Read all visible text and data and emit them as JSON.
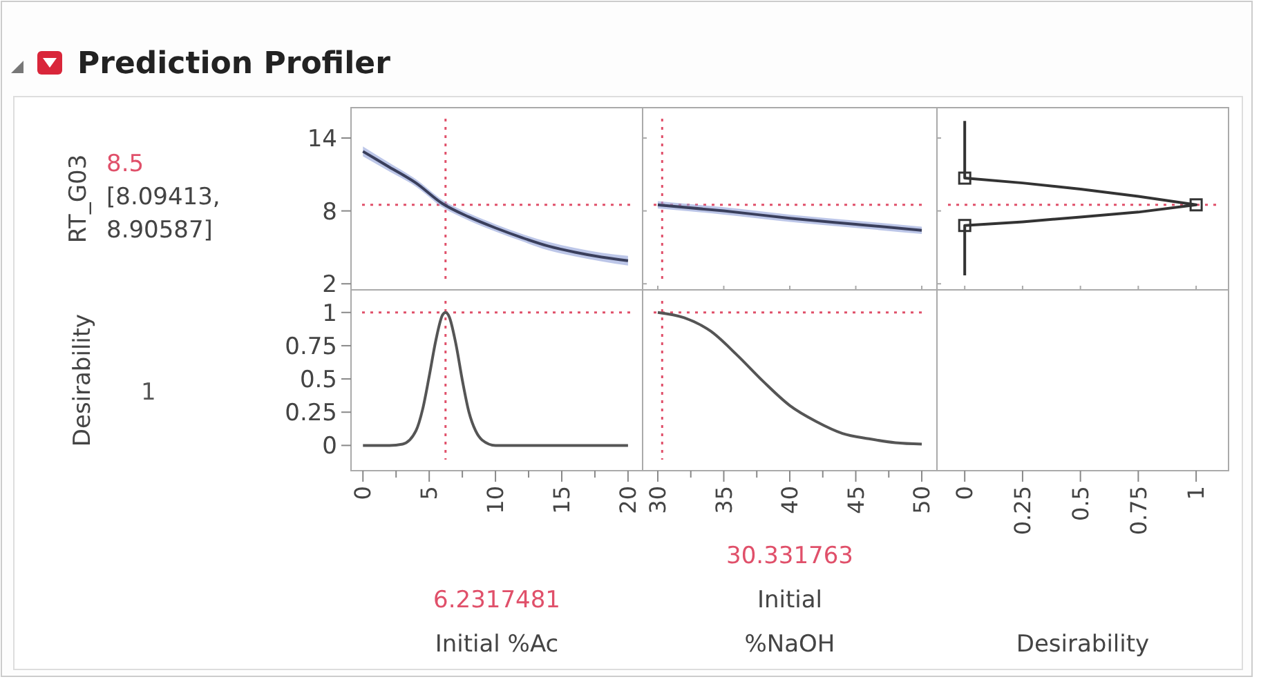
{
  "chart_data": [
    {
      "type": "line",
      "title": "Prediction Profiler",
      "ylabel": "RT_G03",
      "annotations": [
        "8.5",
        "[8.09413, 8.90587]"
      ],
      "x": [
        0,
        2,
        4,
        6,
        8,
        10,
        12,
        14,
        16,
        18,
        20
      ],
      "series": [
        {
          "color": "#3a3f5c",
          "values": [
            12.9,
            11.6,
            10.3,
            8.6,
            7.5,
            6.6,
            5.8,
            5.1,
            4.6,
            4.2,
            3.9
          ],
          "lower": [
            12.5,
            11.25,
            10.0,
            8.3,
            7.2,
            6.3,
            5.5,
            4.75,
            4.25,
            3.85,
            3.5
          ],
          "upper": [
            13.3,
            11.95,
            10.6,
            8.9,
            7.8,
            6.9,
            6.1,
            5.45,
            4.95,
            4.55,
            4.3
          ]
        }
      ],
      "xlim": [
        -0.9,
        21.1
      ],
      "ylim": [
        1.5,
        16.5
      ],
      "yticks": [
        2,
        8,
        14
      ],
      "tick_labels": "y",
      "ref_lines": [
        {
          "axis": "x",
          "value": 6.2317481,
          "color": "#e0506a",
          "line_style": "dotted"
        },
        {
          "axis": "y",
          "value": 8.5,
          "color": "#e0506a",
          "line_style": "dotted"
        }
      ]
    },
    {
      "type": "line",
      "x": [
        30,
        35,
        40,
        45,
        50
      ],
      "series": [
        {
          "color": "#3a3f5c",
          "values": [
            8.5,
            8.0,
            7.4,
            6.9,
            6.4
          ],
          "lower": [
            8.2,
            7.7,
            7.1,
            6.6,
            6.1
          ],
          "upper": [
            8.8,
            8.3,
            7.7,
            7.2,
            6.7
          ]
        }
      ],
      "xlim": [
        28.85,
        51.15
      ],
      "ylim": [
        1.5,
        16.5
      ],
      "yticks": [
        2,
        8,
        14
      ],
      "xticks": [
        30,
        35,
        40,
        45,
        50
      ],
      "tick_labels": false,
      "ref_lines": [
        {
          "axis": "x",
          "value": 30.331763,
          "color": "#e0506a",
          "line_style": "dotted"
        },
        {
          "axis": "y",
          "value": 8.5,
          "color": "#e0506a",
          "line_style": "dotted"
        }
      ]
    },
    {
      "type": "line",
      "series": [
        {
          "color": "#333333",
          "x": [
            0,
            0,
            0.25,
            0.5,
            0.75,
            1,
            0.75,
            0.5,
            0.25,
            0,
            0
          ],
          "values": [
            15.4,
            10.7,
            10.3,
            9.8,
            9.2,
            8.5,
            7.9,
            7.5,
            7.1,
            6.8,
            2.7
          ]
        },
        {
          "type": "scatter",
          "color": "#333333",
          "marker": "square",
          "x": [
            0,
            1,
            0
          ],
          "values": [
            10.7,
            8.5,
            6.8
          ]
        }
      ],
      "xlim": [
        -0.12,
        1.14
      ],
      "ylim": [
        1.5,
        16.5
      ],
      "yticks": [
        2,
        8,
        14
      ],
      "xticks": [
        0,
        0.25,
        0.5,
        0.75,
        1
      ],
      "tick_labels": false,
      "ref_lines": [
        {
          "axis": "y",
          "value": 8.5,
          "color": "#e0506a",
          "line_style": "dotted"
        }
      ]
    },
    {
      "type": "line",
      "ylabel": "Desirability",
      "xlabel": "Initial %Ac",
      "annotations": [
        "1",
        "6.2317481"
      ],
      "x": [
        0,
        2,
        3,
        4,
        4.5,
        5,
        5.5,
        6,
        6.23,
        6.5,
        7,
        7.5,
        8,
        8.5,
        9,
        10,
        12,
        15,
        20
      ],
      "series": [
        {
          "color": "#555555",
          "values": [
            0,
            0,
            0.01,
            0.11,
            0.27,
            0.52,
            0.79,
            0.98,
            1,
            0.97,
            0.77,
            0.49,
            0.25,
            0.11,
            0.04,
            0,
            0,
            0,
            0
          ]
        }
      ],
      "xlim": [
        -0.9,
        21.1
      ],
      "ylim": [
        -0.19,
        1.17
      ],
      "yticks": [
        0,
        0.25,
        0.5,
        0.75,
        1
      ],
      "xticks": [
        0,
        {
          "value": 2.5,
          "label": null
        },
        5,
        {
          "value": 7.5,
          "label": null
        },
        10,
        {
          "value": 12.5,
          "label": null
        },
        15,
        {
          "value": 17.5,
          "label": null
        },
        20
      ],
      "ref_lines": [
        {
          "axis": "x",
          "value": 6.2317481,
          "color": "#e0506a",
          "line_style": "dotted"
        },
        {
          "axis": "y",
          "value": 1,
          "color": "#e0506a",
          "line_style": "dotted"
        }
      ]
    },
    {
      "type": "line",
      "xlabel": "Initial %NaOH",
      "annotations": [
        "30.331763"
      ],
      "x": [
        30,
        32,
        34,
        36,
        38,
        40,
        42,
        44,
        46,
        48,
        50
      ],
      "series": [
        {
          "color": "#555555",
          "values": [
            1,
            0.96,
            0.86,
            0.68,
            0.48,
            0.3,
            0.18,
            0.09,
            0.05,
            0.02,
            0.01
          ]
        }
      ],
      "xlim": [
        28.85,
        51.15
      ],
      "ylim": [
        -0.19,
        1.17
      ],
      "xticks": [
        30,
        {
          "value": 32.5,
          "label": null
        },
        35,
        {
          "value": 37.5,
          "label": null
        },
        40,
        {
          "value": 42.5,
          "label": null
        },
        45,
        {
          "value": 47.5,
          "label": null
        },
        50
      ],
      "tick_labels": "x",
      "ref_lines": [
        {
          "axis": "x",
          "value": 30.331763,
          "color": "#e0506a",
          "line_style": "dotted"
        },
        {
          "axis": "y",
          "value": 1,
          "color": "#e0506a",
          "line_style": "dotted"
        }
      ]
    },
    {
      "type": "line",
      "xlabel": "Desirability",
      "xlim": [
        -0.12,
        1.14
      ],
      "ylim": [
        -0.19,
        1.17
      ],
      "xticks": [
        0,
        0.25,
        0.5,
        0.75,
        1
      ],
      "tick_labels": "x"
    }
  ]
}
